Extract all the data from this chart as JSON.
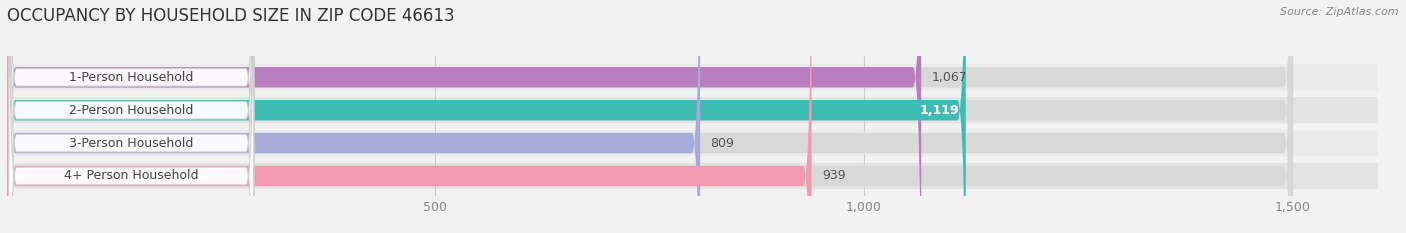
{
  "title": "OCCUPANCY BY HOUSEHOLD SIZE IN ZIP CODE 46613",
  "source": "Source: ZipAtlas.com",
  "categories": [
    "1-Person Household",
    "2-Person Household",
    "3-Person Household",
    "4+ Person Household"
  ],
  "values": [
    1067,
    1119,
    809,
    939
  ],
  "bar_colors": [
    "#b87dbf",
    "#3dbcb4",
    "#a8aad8",
    "#f49ab0"
  ],
  "value_labels": [
    "1,067",
    "1,119",
    "809",
    "939"
  ],
  "label_white": [
    false,
    true,
    false,
    false
  ],
  "xlim_max": 1600,
  "data_max": 1500,
  "xticks": [
    500,
    1000,
    1500
  ],
  "xtick_labels": [
    "500",
    "1,000",
    "1,500"
  ],
  "background_color": "#f2f2f2",
  "bar_bg_color": "#e0e0e0",
  "row_bg_color": "#ebebeb",
  "title_fontsize": 12,
  "source_fontsize": 8,
  "tick_fontsize": 9,
  "label_fontsize": 9,
  "category_fontsize": 9
}
